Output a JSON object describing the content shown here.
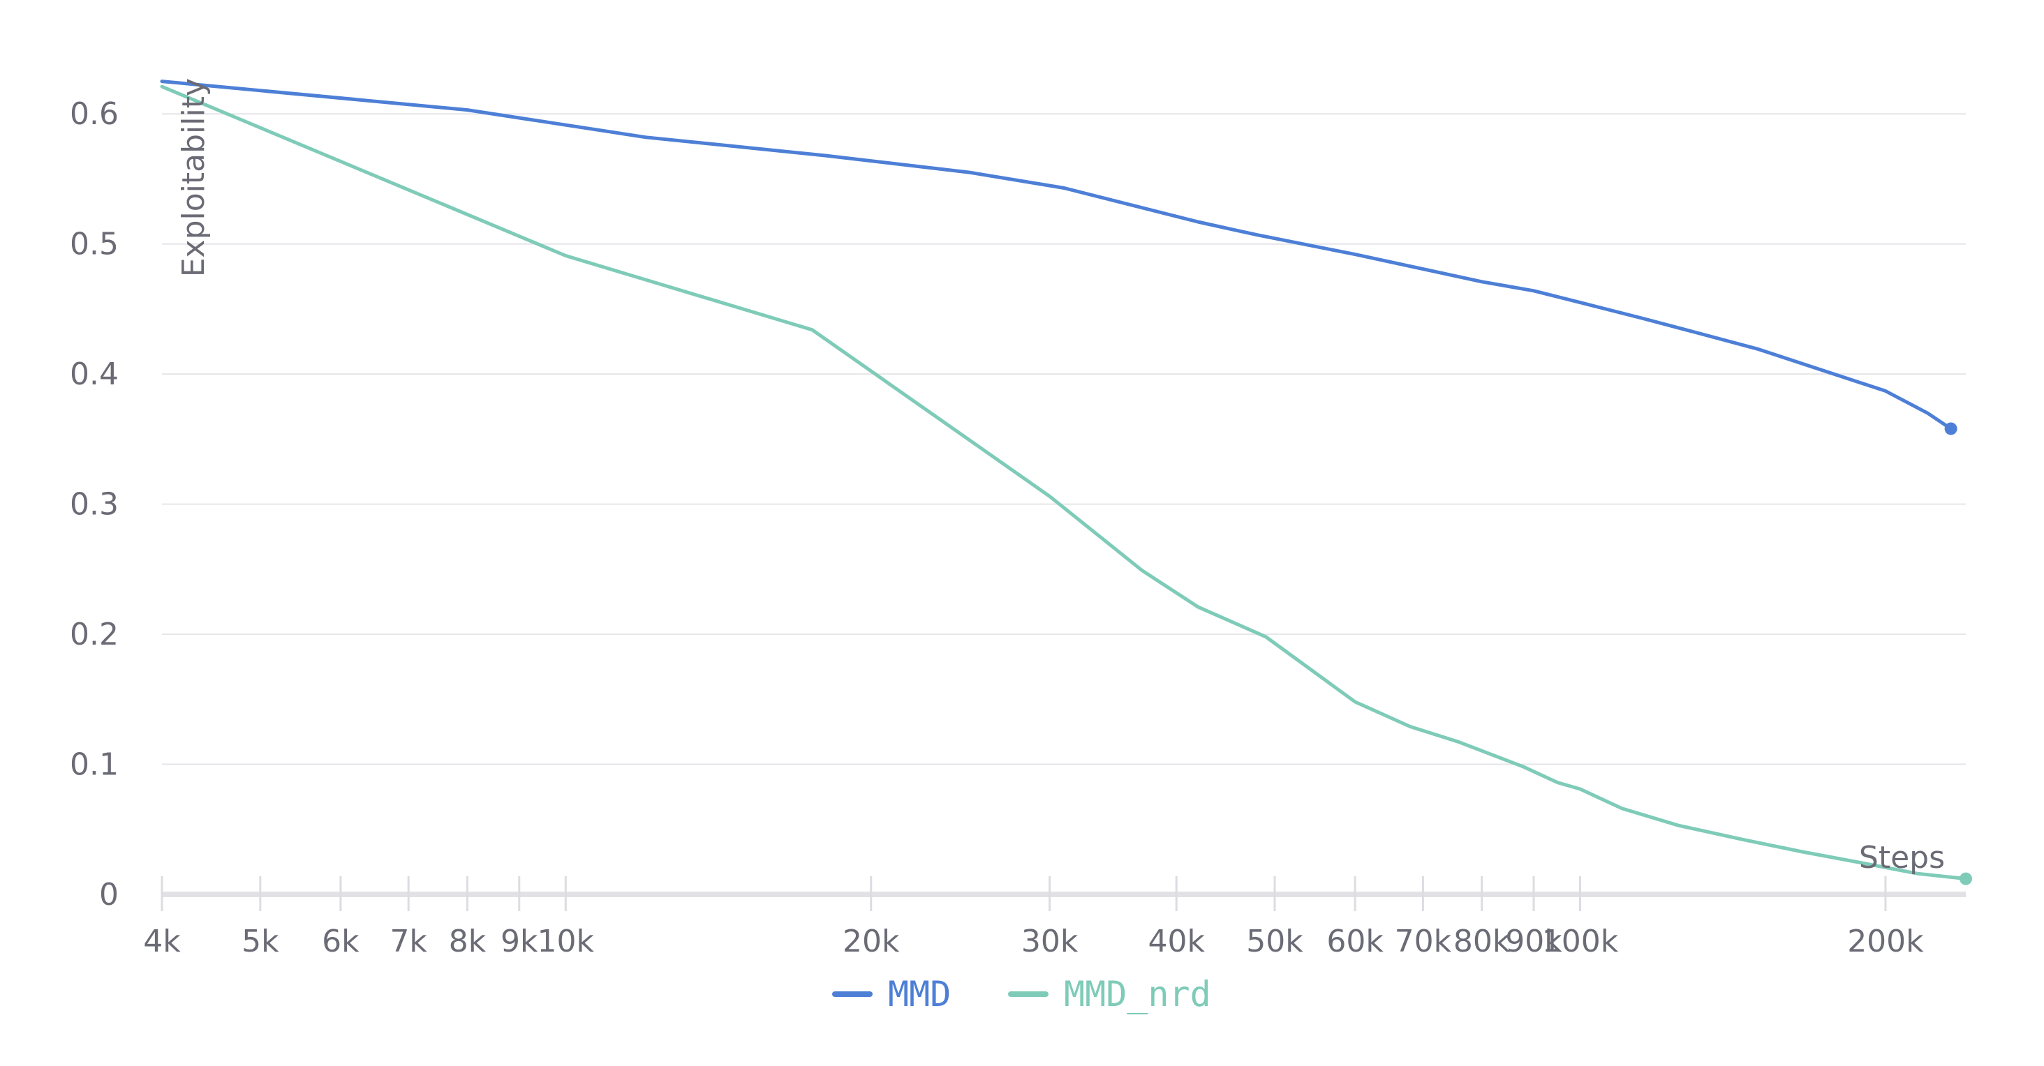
{
  "chart_data": {
    "type": "line",
    "title": "",
    "xlabel": "Steps",
    "ylabel": "Exploitability",
    "x_scale": "log",
    "xlim": [
      4000,
      240000
    ],
    "ylim": [
      0,
      0.65
    ],
    "grid": true,
    "legend_position": "bottom-center",
    "x_ticks": [
      {
        "value": 4000,
        "label": "4k"
      },
      {
        "value": 5000,
        "label": "5k"
      },
      {
        "value": 6000,
        "label": "6k"
      },
      {
        "value": 7000,
        "label": "7k"
      },
      {
        "value": 8000,
        "label": "8k"
      },
      {
        "value": 9000,
        "label": "9k"
      },
      {
        "value": 10000,
        "label": "10k"
      },
      {
        "value": 20000,
        "label": "20k"
      },
      {
        "value": 30000,
        "label": "30k"
      },
      {
        "value": 40000,
        "label": "40k"
      },
      {
        "value": 50000,
        "label": "50k"
      },
      {
        "value": 60000,
        "label": "60k"
      },
      {
        "value": 70000,
        "label": "70k"
      },
      {
        "value": 80000,
        "label": "80k"
      },
      {
        "value": 90000,
        "label": "90k"
      },
      {
        "value": 100000,
        "label": "100k"
      },
      {
        "value": 200000,
        "label": "200k"
      }
    ],
    "y_ticks": [
      {
        "value": 0,
        "label": "0"
      },
      {
        "value": 0.1,
        "label": "0.1"
      },
      {
        "value": 0.2,
        "label": "0.2"
      },
      {
        "value": 0.3,
        "label": "0.3"
      },
      {
        "value": 0.4,
        "label": "0.4"
      },
      {
        "value": 0.5,
        "label": "0.5"
      },
      {
        "value": 0.6,
        "label": "0.6"
      }
    ],
    "series": [
      {
        "name": "MMD",
        "color": "#4d7fd6",
        "x": [
          4000,
          8000,
          12000,
          18000,
          25000,
          31000,
          42000,
          48000,
          60000,
          80000,
          90000,
          100000,
          115000,
          130000,
          150000,
          170000,
          200000,
          220000,
          232000
        ],
        "y": [
          0.625,
          0.603,
          0.582,
          0.568,
          0.555,
          0.543,
          0.517,
          0.507,
          0.492,
          0.471,
          0.464,
          0.455,
          0.443,
          0.432,
          0.419,
          0.405,
          0.387,
          0.37,
          0.358
        ]
      },
      {
        "name": "MMD_nrd",
        "color": "#7ecbb8",
        "x": [
          4000,
          10000,
          17500,
          30000,
          37000,
          42000,
          49000,
          60000,
          68000,
          76000,
          88000,
          95000,
          100000,
          110000,
          125000,
          145000,
          165000,
          190000,
          215000,
          240000
        ],
        "y": [
          0.621,
          0.491,
          0.434,
          0.306,
          0.249,
          0.221,
          0.198,
          0.148,
          0.129,
          0.117,
          0.098,
          0.086,
          0.081,
          0.066,
          0.053,
          0.042,
          0.033,
          0.024,
          0.016,
          0.012
        ]
      }
    ]
  }
}
